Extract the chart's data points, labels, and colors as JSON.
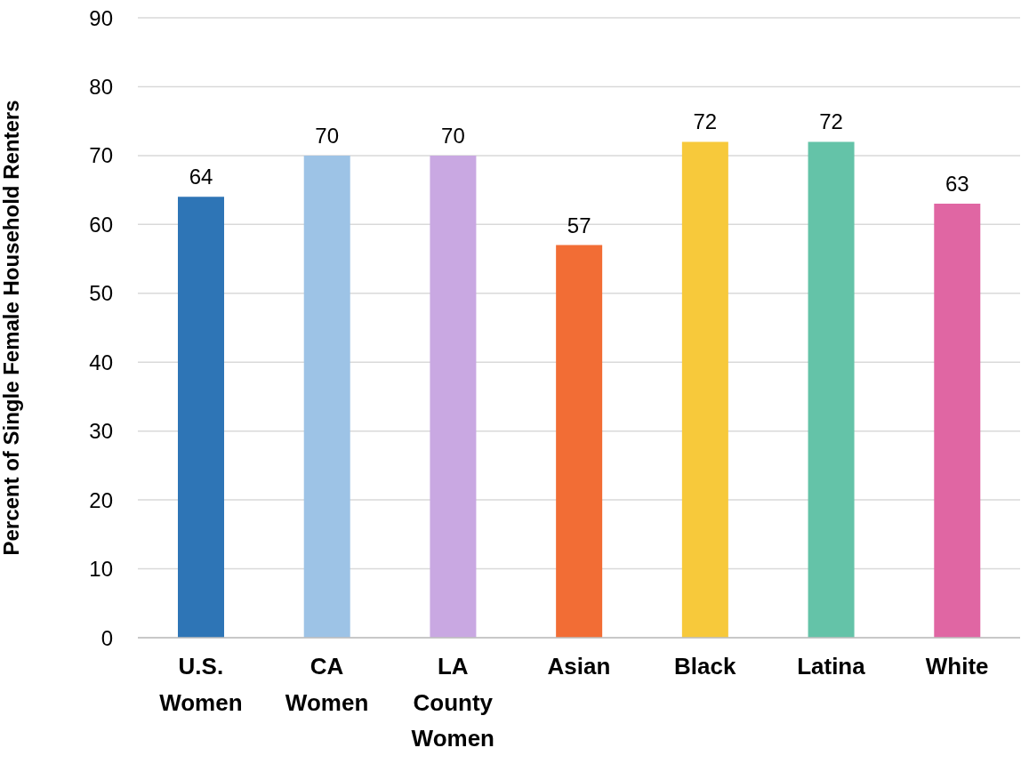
{
  "chart_data": {
    "type": "bar",
    "ylabel": "Percent of Single Female Household Renters",
    "categories": [
      "U.S. Women",
      "CA Women",
      "LA County Women",
      "Asian",
      "Black",
      "Latina",
      "White"
    ],
    "values": [
      64,
      70,
      70,
      57,
      72,
      72,
      63
    ],
    "colors": [
      "#2e75b6",
      "#9dc3e6",
      "#c9a8e2",
      "#f26d35",
      "#f7c93b",
      "#64c3a8",
      "#e066a3"
    ],
    "ylim": [
      0,
      90
    ],
    "yticks": [
      0,
      10,
      20,
      30,
      40,
      50,
      60,
      70,
      80,
      90
    ],
    "grid": "y",
    "data_labels": true,
    "legend": false
  }
}
